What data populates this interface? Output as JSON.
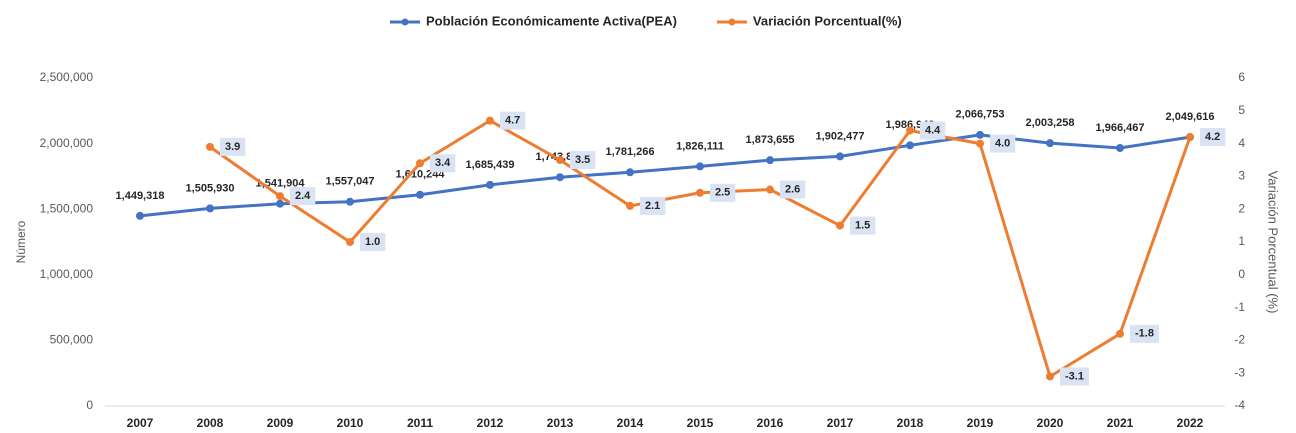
{
  "chart_data": {
    "type": "line",
    "categories": [
      "2007",
      "2008",
      "2009",
      "2010",
      "2011",
      "2012",
      "2013",
      "2014",
      "2015",
      "2016",
      "2017",
      "2018",
      "2019",
      "2020",
      "2021",
      "2022"
    ],
    "series": [
      {
        "name": "Población Económicamente Activa(PEA)",
        "color": "#4472c4",
        "values": [
          1449318,
          1505930,
          1541904,
          1557047,
          1610244,
          1685439,
          1743821,
          1781266,
          1826111,
          1873655,
          1902477,
          1986940,
          2066753,
          2003258,
          1966467,
          2049616
        ],
        "value_labels": [
          "1,449,318",
          "1,505,930",
          "1,541,904",
          "1,557,047",
          "1,610,244",
          "1,685,439",
          "1,743,821",
          "1,781,266",
          "1,826,111",
          "1,873,655",
          "1,902,477",
          "1,986,940",
          "2,066,753",
          "2,003,258",
          "1,966,467",
          "2,049,616"
        ]
      },
      {
        "name": "Variación Porcentual(%)",
        "color": "#ed7d31",
        "axis": "y2",
        "values": [
          null,
          3.9,
          2.4,
          1.0,
          3.4,
          4.7,
          3.5,
          2.1,
          2.5,
          2.6,
          1.5,
          4.4,
          4.0,
          -3.1,
          -1.8,
          4.2
        ],
        "value_labels": [
          null,
          "3.9",
          "2.4",
          "1.0",
          "3.4",
          "4.7",
          "3.5",
          "2.1",
          "2.5",
          "2.6",
          "1.5",
          "4.4",
          "4.0",
          "-3.1",
          "-1.8",
          "4.2"
        ]
      }
    ],
    "ylabel": "Número",
    "y2label": "Variación Porcentual (%)",
    "ylim": [
      0,
      2500000
    ],
    "yticks": [
      0,
      {
        "value": 500000,
        "label": "500,000"
      },
      {
        "value": 1000000,
        "label": "1,000,000"
      },
      {
        "value": 1500000,
        "label": "1,500,000"
      },
      {
        "value": 2000000,
        "label": "2,000,000"
      },
      {
        "value": 2500000,
        "label": "2,500,000"
      }
    ],
    "y2lim": [
      -4,
      6
    ],
    "y2ticks": [
      -4,
      -3,
      -2,
      -1,
      0,
      1,
      2,
      3,
      4,
      5,
      6
    ],
    "legend": "top"
  }
}
